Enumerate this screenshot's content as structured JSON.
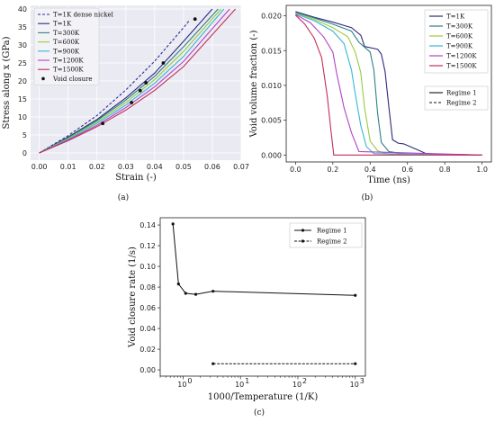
{
  "chart_data": [
    {
      "type": "line",
      "caption": "(a)",
      "xlabel": "Strain (-)",
      "ylabel": "Stress along x (GPa)",
      "xlim": [
        -0.003,
        0.07
      ],
      "ylim": [
        -2,
        41
      ],
      "xticks": [
        "0.00",
        "0.01",
        "0.02",
        "0.03",
        "0.04",
        "0.05",
        "0.06",
        "0.07"
      ],
      "yticks": [
        "0",
        "5",
        "10",
        "15",
        "20",
        "25",
        "30",
        "35",
        "40"
      ],
      "legend_position": "top-left",
      "series": [
        {
          "name": "T=1K dense nickel",
          "color": "#2b2f8f",
          "dash": true,
          "x": [
            0,
            0.01,
            0.02,
            0.03,
            0.04,
            0.05,
            0.052
          ],
          "y": [
            0,
            4.8,
            10.4,
            17.5,
            25.5,
            34.8,
            36.8
          ]
        },
        {
          "name": "T=1K",
          "color": "#2d2a7e",
          "dash": false,
          "x": [
            0,
            0.01,
            0.02,
            0.03,
            0.04,
            0.05,
            0.06
          ],
          "y": [
            0,
            4.4,
            9.3,
            15.3,
            22.2,
            31.0,
            40.0
          ]
        },
        {
          "name": "T=300K",
          "color": "#2f7f86",
          "dash": false,
          "x": [
            0,
            0.01,
            0.02,
            0.03,
            0.04,
            0.05,
            0.062
          ],
          "y": [
            0,
            4.2,
            9.0,
            14.7,
            21.3,
            29.5,
            40.0
          ]
        },
        {
          "name": "T=600K",
          "color": "#9acb3c",
          "dash": false,
          "x": [
            0,
            0.01,
            0.02,
            0.03,
            0.04,
            0.05,
            0.063
          ],
          "y": [
            0,
            4.0,
            8.6,
            14.0,
            20.4,
            28.2,
            40.0
          ]
        },
        {
          "name": "T=900K",
          "color": "#35b6d3",
          "dash": false,
          "x": [
            0,
            0.01,
            0.02,
            0.03,
            0.04,
            0.05,
            0.064
          ],
          "y": [
            0,
            3.8,
            8.2,
            13.3,
            19.4,
            26.8,
            40.0
          ]
        },
        {
          "name": "T=1200K",
          "color": "#b043c6",
          "dash": false,
          "x": [
            0,
            0.01,
            0.02,
            0.03,
            0.04,
            0.05,
            0.066
          ],
          "y": [
            0,
            3.6,
            7.7,
            12.6,
            18.4,
            25.4,
            40.0
          ]
        },
        {
          "name": "T=1500K",
          "color": "#c12f55",
          "dash": false,
          "x": [
            0,
            0.01,
            0.02,
            0.03,
            0.04,
            0.05,
            0.068
          ],
          "y": [
            0,
            3.4,
            7.3,
            11.9,
            17.4,
            24.0,
            40.0
          ]
        }
      ],
      "markers": {
        "name": "Void closure",
        "color": "#111111",
        "x": [
          0.022,
          0.032,
          0.035,
          0.037,
          0.043,
          0.054
        ],
        "y": [
          8.2,
          14.0,
          17.3,
          19.5,
          25.0,
          37.2
        ]
      }
    },
    {
      "type": "line",
      "caption": "(b)",
      "xlabel": "Time (ns)",
      "ylabel": "Void volume fraction (-)",
      "xlim": [
        -0.05,
        1.05
      ],
      "ylim": [
        -0.001,
        0.0215
      ],
      "xticks": [
        "0.0",
        "0.2",
        "0.4",
        "0.6",
        "0.8",
        "1.0"
      ],
      "yticks": [
        "0.000",
        "0.005",
        "0.010",
        "0.015",
        "0.020"
      ],
      "legend_position": "top-right",
      "regimes": [
        "Regime 1",
        "Regime 2"
      ],
      "series": [
        {
          "name": "T=1K",
          "color": "#2d2a7e",
          "x": [
            0,
            0.1,
            0.2,
            0.3,
            0.35,
            0.37,
            0.44,
            0.46,
            0.48,
            0.5,
            0.52,
            0.55,
            0.58,
            0.65,
            0.7,
            0.8,
            1.0
          ],
          "y": [
            0.0206,
            0.0198,
            0.0191,
            0.0183,
            0.0172,
            0.0156,
            0.0152,
            0.0145,
            0.012,
            0.007,
            0.0022,
            0.0017,
            0.0016,
            0.0008,
            0.0002,
            0.0001,
            0.0
          ]
        },
        {
          "name": "T=300K",
          "color": "#2f7f86",
          "x": [
            0,
            0.1,
            0.2,
            0.3,
            0.34,
            0.4,
            0.42,
            0.44,
            0.46,
            0.5,
            0.6,
            1.0
          ],
          "y": [
            0.0205,
            0.0197,
            0.0188,
            0.0178,
            0.0162,
            0.0148,
            0.0122,
            0.006,
            0.0018,
            0.0005,
            0.0001,
            0.0
          ]
        },
        {
          "name": "T=600K",
          "color": "#9acb3c",
          "x": [
            0,
            0.1,
            0.2,
            0.28,
            0.32,
            0.35,
            0.37,
            0.4,
            0.44,
            0.5,
            1.0
          ],
          "y": [
            0.0204,
            0.0195,
            0.0183,
            0.017,
            0.0148,
            0.0118,
            0.0068,
            0.002,
            0.0006,
            0.0001,
            0.0
          ]
        },
        {
          "name": "T=900K",
          "color": "#35b6d3",
          "x": [
            0,
            0.1,
            0.2,
            0.26,
            0.3,
            0.32,
            0.35,
            0.38,
            0.42,
            1.0
          ],
          "y": [
            0.0203,
            0.0193,
            0.0178,
            0.016,
            0.0122,
            0.0088,
            0.0042,
            0.0012,
            0.0002,
            0.0
          ]
        },
        {
          "name": "T=1200K",
          "color": "#b043c6",
          "x": [
            0,
            0.08,
            0.15,
            0.2,
            0.22,
            0.26,
            0.3,
            0.34,
            1.0
          ],
          "y": [
            0.0202,
            0.019,
            0.017,
            0.0148,
            0.0118,
            0.0068,
            0.0032,
            0.0005,
            0.0
          ]
        },
        {
          "name": "T=1500K",
          "color": "#c12f55",
          "x": [
            0,
            0.05,
            0.1,
            0.14,
            0.17,
            0.19,
            0.205,
            1.0
          ],
          "y": [
            0.0201,
            0.0188,
            0.0168,
            0.014,
            0.0085,
            0.0035,
            0.0,
            0.0
          ]
        }
      ]
    },
    {
      "type": "line",
      "caption": "(c)",
      "xlabel": "1000/Temperature (1/K)",
      "ylabel": "Void closure rate (1/s)",
      "xscale": "log",
      "xlim": [
        0.4,
        1500
      ],
      "ylim": [
        -0.006,
        0.147
      ],
      "xticks": [
        {
          "value": 1,
          "label": "10",
          "exp": "0"
        },
        {
          "value": 10,
          "label": "10",
          "exp": "1"
        },
        {
          "value": 100,
          "label": "10",
          "exp": "2"
        },
        {
          "value": 1000,
          "label": "10",
          "exp": "3"
        }
      ],
      "yticks": [
        "0.00",
        "0.02",
        "0.04",
        "0.06",
        "0.08",
        "0.10",
        "0.12",
        "0.14"
      ],
      "legend_position": "top-right",
      "series": [
        {
          "name": "Regime 1",
          "color": "#111111",
          "dash": false,
          "x": [
            0.667,
            0.833,
            1.111,
            1.667,
            3.333,
            1000
          ],
          "y": [
            0.141,
            0.083,
            0.074,
            0.073,
            0.076,
            0.072
          ]
        },
        {
          "name": "Regime 2",
          "color": "#111111",
          "dash": true,
          "x": [
            3.333,
            1000
          ],
          "y": [
            0.006,
            0.006
          ]
        }
      ]
    }
  ]
}
